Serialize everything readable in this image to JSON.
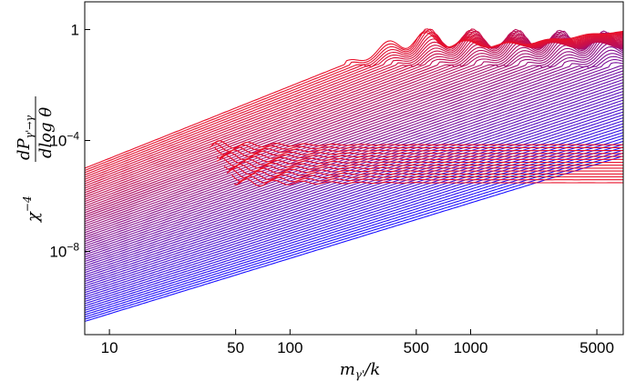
{
  "chart_data": {
    "type": "line",
    "scale": {
      "x": "log",
      "y": "log"
    },
    "xlim": [
      7.3,
      7000
    ],
    "ylim": [
      1e-11,
      10
    ],
    "x_ticks": [
      {
        "value": 10,
        "label": "10"
      },
      {
        "value": 50,
        "label": "50"
      },
      {
        "value": 100,
        "label": "100"
      },
      {
        "value": 500,
        "label": "500"
      },
      {
        "value": 1000,
        "label": "1000"
      },
      {
        "value": 5000,
        "label": "5000"
      }
    ],
    "y_ticks": [
      {
        "value": 1,
        "label": "1",
        "exp": ""
      },
      {
        "value": 0.0001,
        "label": "10",
        "exp": "−4"
      },
      {
        "value": 1e-08,
        "label": "10",
        "exp": "−8"
      }
    ],
    "xlabel": {
      "base": "m",
      "sub": "γ'",
      "suffix": "/k"
    },
    "ylabel": {
      "chi": "χ",
      "chi_exp": "−4",
      "numerator": "dP",
      "numerator_sub": "γ'→γ",
      "denominator": "dlog θ"
    },
    "colors": {
      "start": "#1a10ff",
      "end": "#e8102a"
    },
    "families": {
      "short_curves": {
        "count": 14,
        "plateau_start": 7e-05,
        "plateau_end": 3e-06,
        "wiggle_x": 35,
        "end_x": 1200
      },
      "long_curves": {
        "count": 70,
        "left_start": 3e-11,
        "left_end": 1e-05,
        "plateau": 0.5
      }
    },
    "grid": false,
    "legend": "none"
  }
}
